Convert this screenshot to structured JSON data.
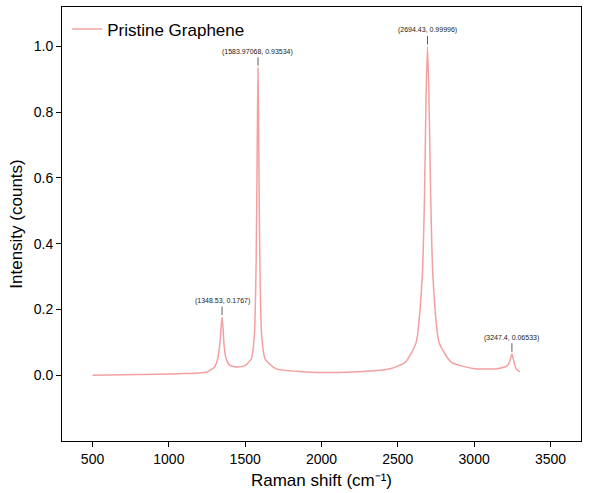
{
  "chart_data": {
    "type": "line",
    "x_label": "Raman shift (cm⁻¹)",
    "y_label": "Intensity (counts)",
    "legend": "upper left",
    "series": [
      {
        "name": "Pristine Graphene",
        "color": "#f4a0a0",
        "x": [
          500,
          800,
          1100,
          1250,
          1300,
          1320,
          1335,
          1343,
          1348.53,
          1354,
          1362,
          1375,
          1400,
          1450,
          1500,
          1540,
          1560,
          1572,
          1579,
          1583.97068,
          1589,
          1596,
          1608,
          1630,
          1700,
          1900,
          2200,
          2450,
          2550,
          2620,
          2660,
          2675,
          2685,
          2694.43,
          2704,
          2715,
          2730,
          2770,
          2850,
          3000,
          3150,
          3220,
          3238,
          3247.4,
          3256,
          3275,
          3300
        ],
        "values": [
          0.0,
          0.002,
          0.005,
          0.01,
          0.025,
          0.05,
          0.1,
          0.15,
          0.1767,
          0.15,
          0.09,
          0.05,
          0.03,
          0.025,
          0.03,
          0.05,
          0.12,
          0.35,
          0.7,
          0.93534,
          0.7,
          0.35,
          0.12,
          0.05,
          0.02,
          0.01,
          0.01,
          0.02,
          0.04,
          0.1,
          0.3,
          0.55,
          0.85,
          0.99996,
          0.85,
          0.55,
          0.3,
          0.1,
          0.04,
          0.02,
          0.02,
          0.03,
          0.05,
          0.06533,
          0.05,
          0.02,
          0.01
        ]
      }
    ],
    "annotations": [
      {
        "x": 1348.53,
        "y": 0.1767,
        "text": "(1348.53, 0.1767)"
      },
      {
        "x": 1583.97068,
        "y": 0.93534,
        "text": "(1583.97068, 0.93534)"
      },
      {
        "x": 2694.43,
        "y": 0.99996,
        "text": "(2694.43, 0.99996)"
      },
      {
        "x": 3247.4,
        "y": 0.06533,
        "text": "(3247.4, 0.06533)"
      }
    ],
    "xlim": [
      300,
      3700
    ],
    "xticks": [
      500,
      1000,
      1500,
      2000,
      2500,
      3000,
      3500
    ],
    "ylim": [
      -0.2,
      1.12
    ],
    "yticks": [
      {
        "value": 0,
        "label": "0.0"
      },
      0.2,
      0.4,
      0.6,
      0.8,
      {
        "value": 1,
        "label": "1.0"
      }
    ],
    "grid": false
  }
}
